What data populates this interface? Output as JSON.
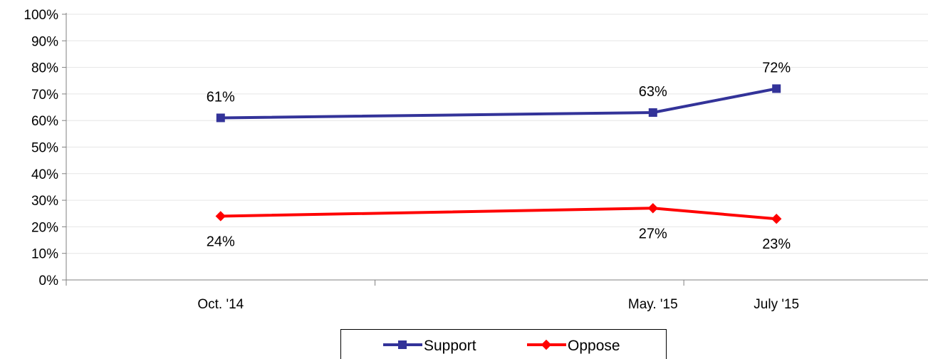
{
  "chart_data": {
    "type": "line",
    "title": "",
    "xlabel": "",
    "ylabel": "",
    "x": [
      "Oct. '14",
      "May. '15",
      "July '15"
    ],
    "x_time": [
      0,
      7,
      9
    ],
    "x_range": [
      -2.5,
      11.5
    ],
    "ylim": [
      0,
      100
    ],
    "yticks": [
      0,
      10,
      20,
      30,
      40,
      50,
      60,
      70,
      80,
      90,
      100
    ],
    "ytick_labels": [
      "0%",
      "10%",
      "20%",
      "30%",
      "40%",
      "50%",
      "60%",
      "70%",
      "80%",
      "90%",
      "100%"
    ],
    "grid": true,
    "legend_position": "bottom",
    "series": [
      {
        "name": "Support",
        "values": [
          61,
          63,
          72
        ],
        "labels": [
          "61%",
          "63%",
          "72%"
        ],
        "color": "#333399",
        "marker": "square",
        "label_position": "above"
      },
      {
        "name": "Oppose",
        "values": [
          24,
          27,
          23
        ],
        "labels": [
          "24%",
          "27%",
          "23%"
        ],
        "color": "#ff0000",
        "marker": "diamond",
        "label_position": "below"
      }
    ]
  }
}
